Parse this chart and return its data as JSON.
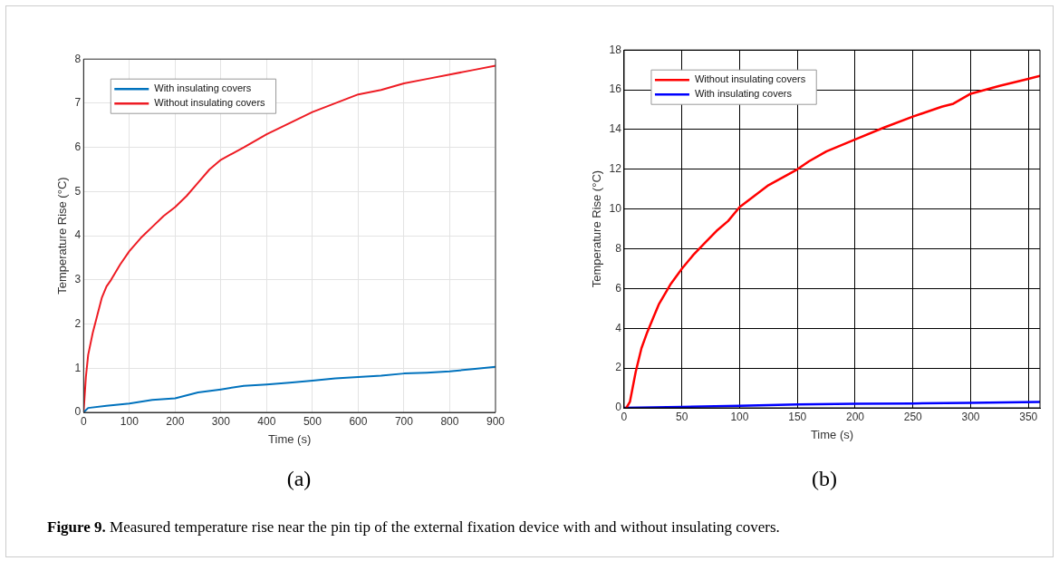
{
  "chart_data": [
    {
      "type": "line",
      "xlabel": "Time (s)",
      "ylabel": "Temperature Rise (°C)",
      "xlim": [
        0,
        900
      ],
      "xticks": [
        0,
        100,
        200,
        300,
        400,
        500,
        600,
        700,
        800,
        900
      ],
      "ylim": [
        0,
        8
      ],
      "yticks": [
        0,
        1,
        2,
        3,
        4,
        5,
        6,
        7,
        8
      ],
      "grid": true,
      "legend": "top left",
      "marker": "none",
      "line_style": "solid",
      "annotations": [
        "(a)"
      ],
      "series": [
        {
          "name": "With insulating covers",
          "color": "#0072bd",
          "x": [
            0,
            10,
            50,
            100,
            150,
            200,
            250,
            300,
            350,
            400,
            450,
            500,
            550,
            600,
            650,
            700,
            750,
            800,
            850,
            900
          ],
          "values": [
            0,
            0.1,
            0.15,
            0.2,
            0.28,
            0.32,
            0.45,
            0.52,
            0.6,
            0.63,
            0.67,
            0.72,
            0.77,
            0.8,
            0.83,
            0.88,
            0.9,
            0.93,
            0.98,
            1.03
          ]
        },
        {
          "name": "Without insulating covers",
          "color": "#ee1c24",
          "x": [
            0,
            5,
            10,
            20,
            30,
            40,
            50,
            60,
            80,
            100,
            125,
            150,
            175,
            200,
            225,
            250,
            275,
            300,
            350,
            400,
            450,
            500,
            550,
            600,
            650,
            700,
            750,
            800,
            850,
            900
          ],
          "values": [
            0,
            0.8,
            1.3,
            1.8,
            2.2,
            2.6,
            2.85,
            3.0,
            3.35,
            3.65,
            3.95,
            4.2,
            4.45,
            4.65,
            4.9,
            5.2,
            5.5,
            5.72,
            6.0,
            6.3,
            6.55,
            6.8,
            7.0,
            7.2,
            7.3,
            7.45,
            7.55,
            7.65,
            7.75,
            7.85
          ]
        }
      ]
    },
    {
      "type": "line",
      "xlabel": "Time (s)",
      "ylabel": "Temperature Rise (°C)",
      "xlim": [
        0,
        360
      ],
      "xticks": [
        0,
        50,
        100,
        150,
        200,
        250,
        300,
        350
      ],
      "ylim": [
        0,
        18
      ],
      "yticks": [
        0,
        2,
        4,
        6,
        8,
        10,
        12,
        14,
        16,
        18
      ],
      "grid": true,
      "legend": "top left",
      "marker": "none",
      "line_style": "solid",
      "annotations": [
        "(b)",
        "Figure 9. Measured temperature rise near the pin tip of the external fixation device with and without insulating covers."
      ],
      "series": [
        {
          "name": "Without insulating covers",
          "color": "#ff0000",
          "x": [
            2,
            5,
            10,
            15,
            20,
            25,
            30,
            40,
            50,
            60,
            70,
            80,
            90,
            100,
            125,
            150,
            160,
            175,
            200,
            225,
            250,
            275,
            285,
            300,
            325,
            350,
            360
          ],
          "values": [
            0,
            0.3,
            1.8,
            3.0,
            3.8,
            4.5,
            5.2,
            6.2,
            7.0,
            7.7,
            8.3,
            8.9,
            9.4,
            10.1,
            11.2,
            12.0,
            12.4,
            12.9,
            13.5,
            14.1,
            14.65,
            15.15,
            15.3,
            15.8,
            16.2,
            16.55,
            16.7
          ]
        },
        {
          "name": "With insulating covers",
          "color": "#0000ff",
          "x": [
            0,
            50,
            100,
            150,
            200,
            250,
            300,
            360
          ],
          "values": [
            0,
            0.05,
            0.1,
            0.17,
            0.2,
            0.22,
            0.25,
            0.3
          ]
        }
      ]
    }
  ]
}
